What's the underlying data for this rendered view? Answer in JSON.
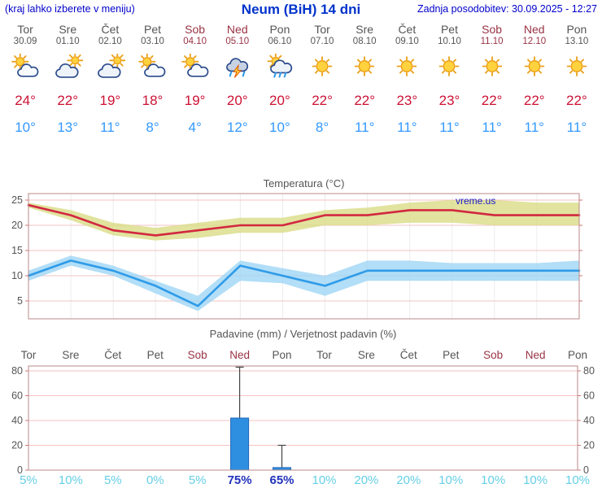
{
  "header": {
    "hint": "(kraj lahko izberete v meniju)",
    "title": "Neum (BiH) 14 dni",
    "updated": "Zadnja posodobitev: 30.09.2025 - 12:27"
  },
  "watermark": "vreme.us",
  "days": [
    {
      "name": "Tor",
      "date": "30.09",
      "weekend": false,
      "icon": "partly-cloudy",
      "tmax": 24,
      "tmin": 10
    },
    {
      "name": "Sre",
      "date": "01.10",
      "weekend": false,
      "icon": "mostly-cloudy",
      "tmax": 22,
      "tmin": 13
    },
    {
      "name": "Čet",
      "date": "02.10",
      "weekend": false,
      "icon": "mostly-cloudy",
      "tmax": 19,
      "tmin": 11
    },
    {
      "name": "Pet",
      "date": "03.10",
      "weekend": false,
      "icon": "partly-cloudy",
      "tmax": 18,
      "tmin": 8
    },
    {
      "name": "Sob",
      "date": "04.10",
      "weekend": true,
      "icon": "partly-cloudy",
      "tmax": 19,
      "tmin": 4
    },
    {
      "name": "Ned",
      "date": "05.10",
      "weekend": true,
      "icon": "thunderstorm",
      "tmax": 20,
      "tmin": 12
    },
    {
      "name": "Pon",
      "date": "06.10",
      "weekend": false,
      "icon": "rain-sun",
      "tmax": 20,
      "tmin": 10
    },
    {
      "name": "Tor",
      "date": "07.10",
      "weekend": false,
      "icon": "sunny",
      "tmax": 22,
      "tmin": 8
    },
    {
      "name": "Sre",
      "date": "08.10",
      "weekend": false,
      "icon": "sunny",
      "tmax": 22,
      "tmin": 11
    },
    {
      "name": "Čet",
      "date": "09.10",
      "weekend": false,
      "icon": "sunny",
      "tmax": 23,
      "tmin": 11
    },
    {
      "name": "Pet",
      "date": "10.10",
      "weekend": false,
      "icon": "sunny",
      "tmax": 23,
      "tmin": 11
    },
    {
      "name": "Sob",
      "date": "11.10",
      "weekend": true,
      "icon": "sunny",
      "tmax": 22,
      "tmin": 11
    },
    {
      "name": "Ned",
      "date": "12.10",
      "weekend": true,
      "icon": "sunny",
      "tmax": 22,
      "tmin": 11
    },
    {
      "name": "Pon",
      "date": "13.10",
      "weekend": false,
      "icon": "sunny",
      "tmax": 22,
      "tmin": 11
    }
  ],
  "chart_data": [
    {
      "type": "line",
      "title": "Temperatura (°C)",
      "categories": [
        "Tor",
        "Sre",
        "Čet",
        "Pet",
        "Sob",
        "Ned",
        "Pon",
        "Tor",
        "Sre",
        "Čet",
        "Pet",
        "Sob",
        "Ned",
        "Pon"
      ],
      "ylim": [
        5,
        25
      ],
      "yticks": [
        5,
        10,
        15,
        20,
        25
      ],
      "grid": true,
      "series": [
        {
          "name": "tmax",
          "color": "#d22840",
          "values": [
            24,
            22,
            19,
            18,
            19,
            20,
            20,
            22,
            22,
            23,
            23,
            22,
            22,
            22
          ],
          "band_upper": [
            24.5,
            23,
            20.5,
            19.5,
            20.5,
            21.5,
            21.5,
            23,
            23.5,
            24.5,
            25,
            25,
            24.5,
            24.5
          ],
          "band_lower": [
            23.5,
            21,
            18,
            17,
            17.5,
            18.5,
            18.5,
            20,
            20,
            20.5,
            20.5,
            20,
            20,
            20
          ],
          "band_color": "#d9dc86"
        },
        {
          "name": "tmin",
          "color": "#2f9be8",
          "values": [
            10,
            13,
            11,
            8,
            4,
            12,
            10,
            8,
            11,
            11,
            11,
            11,
            11,
            11
          ],
          "band_upper": [
            11,
            14,
            12,
            9,
            6,
            13,
            11.5,
            10,
            13,
            13,
            12.5,
            12.5,
            12.5,
            13
          ],
          "band_lower": [
            9,
            12,
            10,
            6.5,
            3,
            9,
            8.5,
            6,
            9,
            9,
            9,
            9,
            9,
            9
          ],
          "band_color": "#9fd6f5"
        }
      ]
    },
    {
      "type": "bar",
      "title": "Padavine (mm) / Verjetnost padavin (%)",
      "categories": [
        {
          "name": "Tor",
          "weekend": false
        },
        {
          "name": "Sre",
          "weekend": false
        },
        {
          "name": "Čet",
          "weekend": false
        },
        {
          "name": "Pet",
          "weekend": false
        },
        {
          "name": "Sob",
          "weekend": true
        },
        {
          "name": "Ned",
          "weekend": true
        },
        {
          "name": "Pon",
          "weekend": false
        },
        {
          "name": "Tor",
          "weekend": false
        },
        {
          "name": "Sre",
          "weekend": false
        },
        {
          "name": "Čet",
          "weekend": false
        },
        {
          "name": "Pet",
          "weekend": false
        },
        {
          "name": "Sob",
          "weekend": true
        },
        {
          "name": "Ned",
          "weekend": true
        },
        {
          "name": "Pon",
          "weekend": false
        }
      ],
      "ylim": [
        0,
        80
      ],
      "yticks": [
        0,
        20,
        40,
        60,
        80
      ],
      "amounts_mm": [
        0,
        0,
        0,
        0,
        0,
        42,
        2,
        0,
        0,
        0,
        0,
        0,
        0,
        0
      ],
      "amounts_max_mm": [
        0,
        0,
        0,
        0,
        0,
        83,
        20,
        0,
        0,
        0,
        0,
        0,
        0,
        0
      ],
      "probabilities_pct": [
        5,
        10,
        5,
        0,
        5,
        75,
        65,
        10,
        20,
        20,
        10,
        10,
        10,
        10
      ],
      "prob_emphasis": [
        false,
        false,
        false,
        false,
        false,
        true,
        true,
        false,
        false,
        false,
        false,
        false,
        false,
        false
      ],
      "bar_color": "#2e8fe0"
    }
  ],
  "colors": {
    "weekday": "#555555",
    "weekend": "#993344",
    "tmax": "#cc1133",
    "tmin": "#3399ff",
    "axis_text": "#555555",
    "grid_pink": "#f5c3c3",
    "grid_gray": "#ececec",
    "frame": "#bb8888",
    "tick": "#cc7777",
    "whisker": "#444444",
    "bar_border": "#1f66b8",
    "prob_normal": "#66cfe6",
    "prob_emph": "#2233bb",
    "watermark": "#1a1acc"
  }
}
